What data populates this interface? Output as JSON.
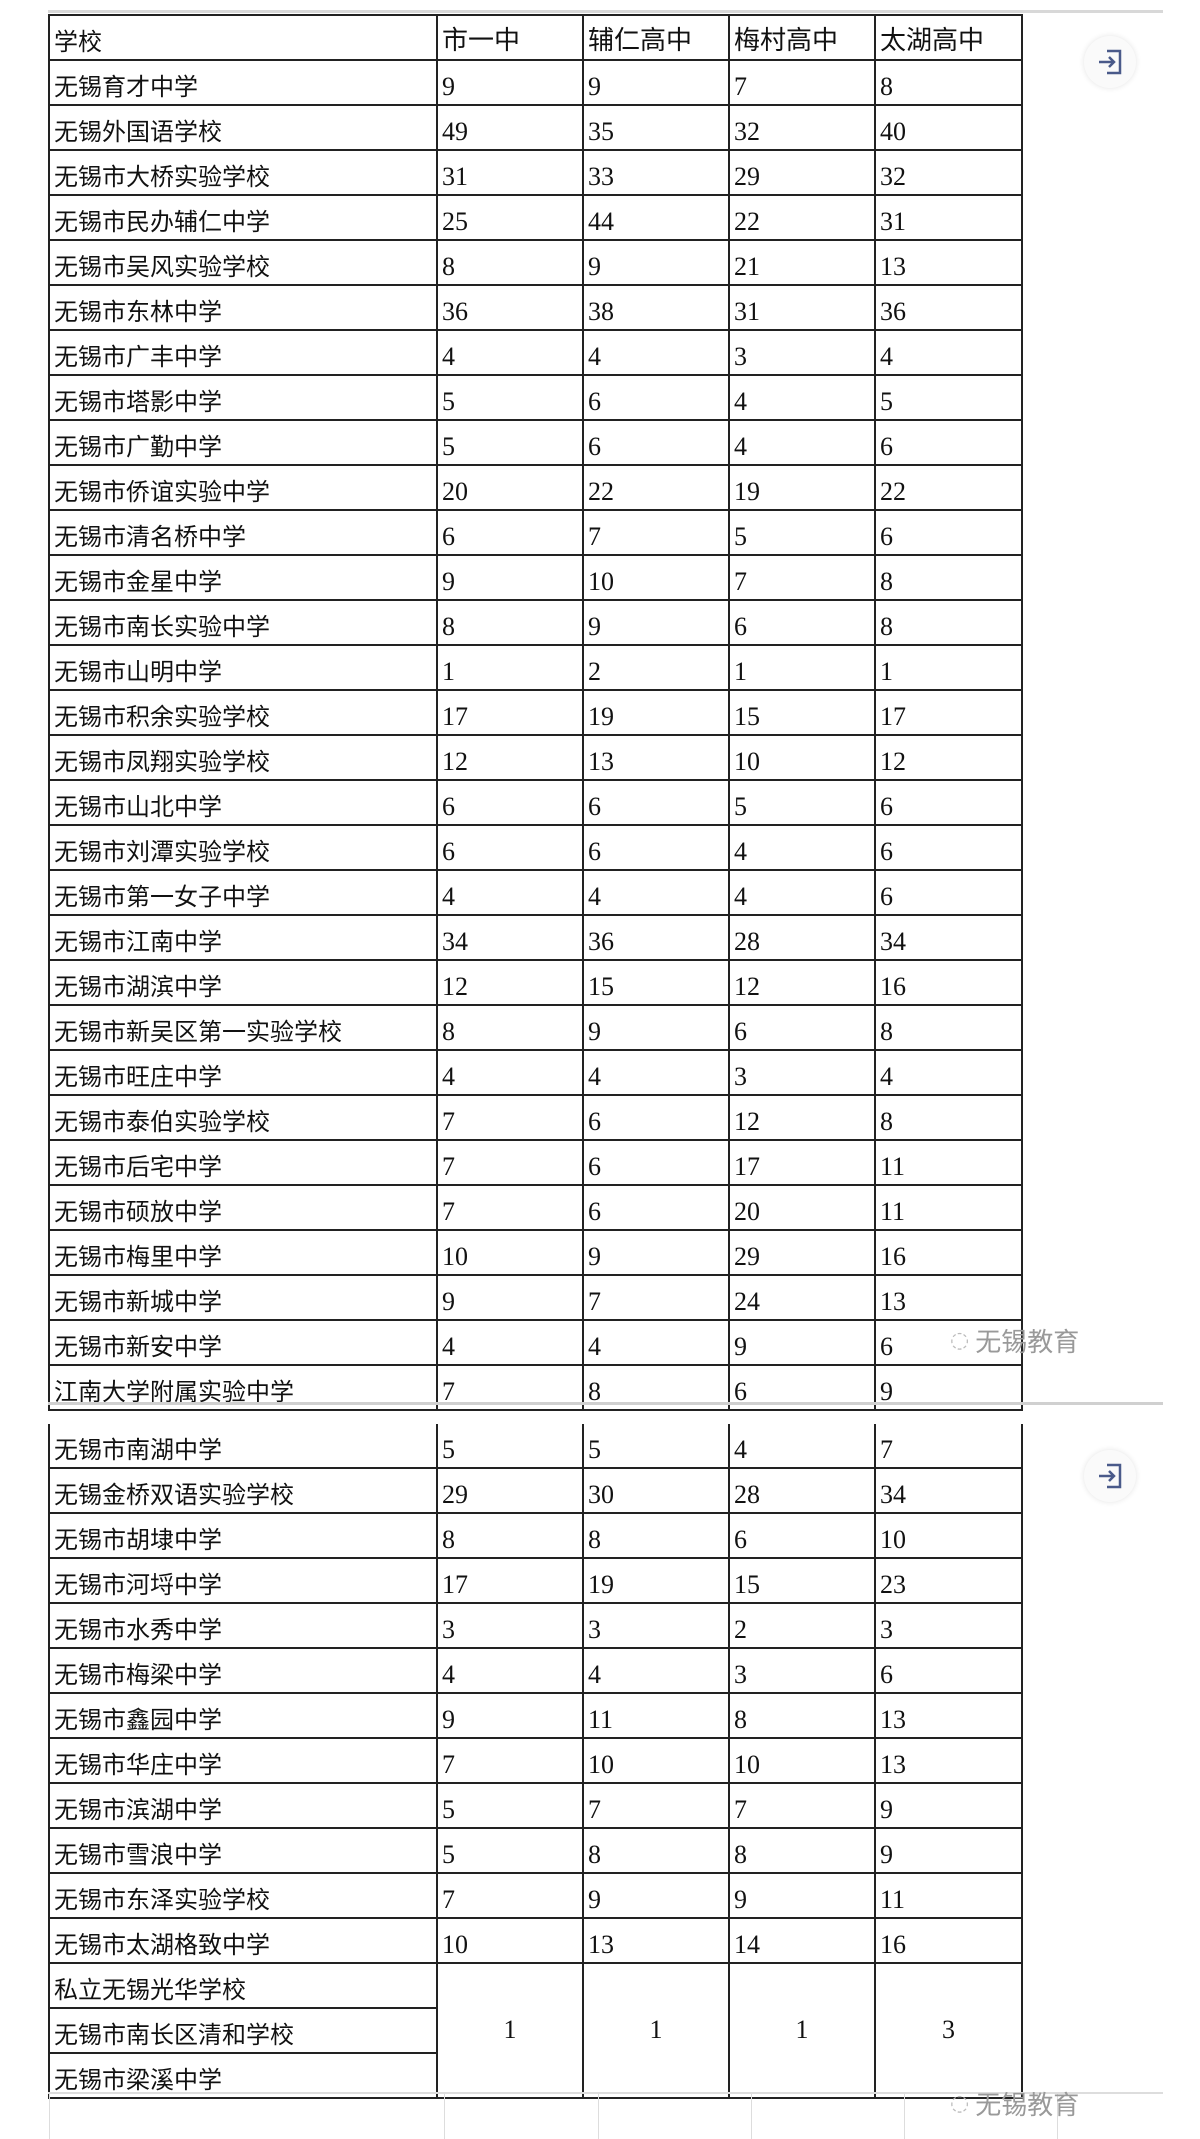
{
  "header": [
    "学校",
    "市一中",
    "辅仁高中",
    "梅村高中",
    "太湖高中"
  ],
  "rows_part1": [
    [
      "无锡育才中学",
      "9",
      "9",
      "7",
      "8"
    ],
    [
      "无锡外国语学校",
      "49",
      "35",
      "32",
      "40"
    ],
    [
      "无锡市大桥实验学校",
      "31",
      "33",
      "29",
      "32"
    ],
    [
      "无锡市民办辅仁中学",
      "25",
      "44",
      "22",
      "31"
    ],
    [
      "无锡市吴风实验学校",
      "8",
      "9",
      "21",
      "13"
    ],
    [
      "无锡市东林中学",
      "36",
      "38",
      "31",
      "36"
    ],
    [
      "无锡市广丰中学",
      "4",
      "4",
      "3",
      "4"
    ],
    [
      "无锡市塔影中学",
      "5",
      "6",
      "4",
      "5"
    ],
    [
      "无锡市广勤中学",
      "5",
      "6",
      "4",
      "6"
    ],
    [
      "无锡市侨谊实验中学",
      "20",
      "22",
      "19",
      "22"
    ],
    [
      "无锡市清名桥中学",
      "6",
      "7",
      "5",
      "6"
    ],
    [
      "无锡市金星中学",
      "9",
      "10",
      "7",
      "8"
    ],
    [
      "无锡市南长实验中学",
      "8",
      "9",
      "6",
      "8"
    ],
    [
      "无锡市山明中学",
      "1",
      "2",
      "1",
      "1"
    ],
    [
      "无锡市积余实验学校",
      "17",
      "19",
      "15",
      "17"
    ],
    [
      "无锡市凤翔实验学校",
      "12",
      "13",
      "10",
      "12"
    ],
    [
      "无锡市山北中学",
      "6",
      "6",
      "5",
      "6"
    ],
    [
      "无锡市刘潭实验学校",
      "6",
      "6",
      "4",
      "6"
    ],
    [
      "无锡市第一女子中学",
      "4",
      "4",
      "4",
      "6"
    ],
    [
      "无锡市江南中学",
      "34",
      "36",
      "28",
      "34"
    ],
    [
      "无锡市湖滨中学",
      "12",
      "15",
      "12",
      "16"
    ],
    [
      "无锡市新吴区第一实验学校",
      "8",
      "9",
      "6",
      "8"
    ],
    [
      "无锡市旺庄中学",
      "4",
      "4",
      "3",
      "4"
    ],
    [
      "无锡市泰伯实验学校",
      "7",
      "6",
      "12",
      "8"
    ],
    [
      "无锡市后宅中学",
      "7",
      "6",
      "17",
      "11"
    ],
    [
      "无锡市硕放中学",
      "7",
      "6",
      "20",
      "11"
    ],
    [
      "无锡市梅里中学",
      "10",
      "9",
      "29",
      "16"
    ],
    [
      "无锡市新城中学",
      "9",
      "7",
      "24",
      "13"
    ],
    [
      "无锡市新安中学",
      "4",
      "4",
      "9",
      "6"
    ],
    [
      "江南大学附属实验中学",
      "7",
      "8",
      "6",
      "9"
    ]
  ],
  "rows_part2": [
    [
      "无锡市南湖中学",
      "5",
      "5",
      "4",
      "7"
    ],
    [
      "无锡金桥双语实验学校",
      "29",
      "30",
      "28",
      "34"
    ],
    [
      "无锡市胡埭中学",
      "8",
      "8",
      "6",
      "10"
    ],
    [
      "无锡市河埒中学",
      "17",
      "19",
      "15",
      "23"
    ],
    [
      "无锡市水秀中学",
      "3",
      "3",
      "2",
      "3"
    ],
    [
      "无锡市梅梁中学",
      "4",
      "4",
      "3",
      "6"
    ],
    [
      "无锡市鑫园中学",
      "9",
      "11",
      "8",
      "13"
    ],
    [
      "无锡市华庄中学",
      "7",
      "10",
      "10",
      "13"
    ],
    [
      "无锡市滨湖中学",
      "5",
      "7",
      "7",
      "9"
    ],
    [
      "无锡市雪浪中学",
      "5",
      "8",
      "8",
      "9"
    ],
    [
      "无锡市东泽实验学校",
      "7",
      "9",
      "9",
      "11"
    ],
    [
      "无锡市太湖格致中学",
      "10",
      "13",
      "14",
      "16"
    ]
  ],
  "merged_group": {
    "schools": [
      "私立无锡光华学校",
      "无锡市南长区清和学校",
      "无锡市梁溪中学"
    ],
    "values": [
      "1",
      "1",
      "1",
      "3"
    ]
  },
  "watermark": "无锡教育",
  "icons": {
    "share": "exit-arrow-icon",
    "watermark_logo": "wechat-icon"
  }
}
